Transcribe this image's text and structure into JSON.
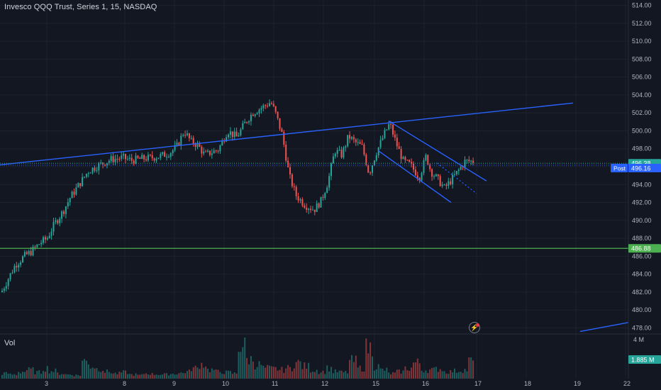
{
  "header": {
    "title": "Invesco QQQ Trust, Series 1, 15, NASDAQ"
  },
  "volume_pane": {
    "label": "Vol",
    "scale_label": "4 M",
    "current_value": "1.885 M"
  },
  "price_badges": {
    "last_price": "496.38",
    "post_label": "Post",
    "post_price": "496.16",
    "horizontal_level": "486.88"
  },
  "colors": {
    "background": "#131722",
    "up": "#26a69a",
    "down": "#ef5350",
    "trendline": "#2962ff",
    "level_line": "#4caf50",
    "grid": "#1e222d",
    "text": "#b2b5be"
  },
  "chart_data": {
    "type": "candlestick",
    "title": "Invesco QQQ Trust, Series 1, 15, NASDAQ",
    "y_axis": {
      "ticks": [
        "514.00",
        "512.00",
        "510.00",
        "508.00",
        "506.00",
        "504.00",
        "502.00",
        "500.00",
        "498.00",
        "496.00",
        "494.00",
        "492.00",
        "490.00",
        "488.00",
        "486.00",
        "484.00",
        "482.00",
        "480.00",
        "478.00"
      ],
      "ylim": [
        477.4,
        514.6
      ],
      "position": "right"
    },
    "x_axis": {
      "ticks": [
        "3",
        "8",
        "9",
        "10",
        "11",
        "12",
        "15",
        "16",
        "17",
        "18",
        "19",
        "22"
      ],
      "tick_days": [
        3,
        8,
        9,
        10,
        11,
        12,
        15,
        16,
        17,
        18,
        19,
        22
      ]
    },
    "grid": true,
    "price_path": [
      [
        1.0,
        482.0
      ],
      [
        1.3,
        483.5
      ],
      [
        1.6,
        485.0
      ],
      [
        2.0,
        486.0
      ],
      [
        2.3,
        486.5
      ],
      [
        2.7,
        487.5
      ],
      [
        3.0,
        488.0
      ],
      [
        3.3,
        489.5
      ],
      [
        3.7,
        491.0
      ],
      [
        4.0,
        492.5
      ],
      [
        4.4,
        494.0
      ],
      [
        4.8,
        495.5
      ],
      [
        5.3,
        496.2
      ],
      [
        5.8,
        496.8
      ],
      [
        6.3,
        497.0
      ],
      [
        6.7,
        496.7
      ],
      [
        7.2,
        496.9
      ],
      [
        7.6,
        497.0
      ],
      [
        8.0,
        497.2
      ],
      [
        8.4,
        497.6
      ],
      [
        8.7,
        498.3
      ],
      [
        9.0,
        500.0
      ],
      [
        9.3,
        498.8
      ],
      [
        9.6,
        498.4
      ],
      [
        9.9,
        497.3
      ],
      [
        10.2,
        497.6
      ],
      [
        10.5,
        497.9
      ],
      [
        10.9,
        500.0
      ],
      [
        11.3,
        499.3
      ],
      [
        11.7,
        501.0
      ],
      [
        12.0,
        502.0
      ],
      [
        12.4,
        502.6
      ],
      [
        12.8,
        503.2
      ],
      [
        13.0,
        502.0
      ],
      [
        13.3,
        499.5
      ],
      [
        13.6,
        495.0
      ],
      [
        13.9,
        492.8
      ],
      [
        14.3,
        491.7
      ],
      [
        14.7,
        491.2
      ],
      [
        15.0,
        492.2
      ],
      [
        15.3,
        494.3
      ],
      [
        15.6,
        497.8
      ],
      [
        15.9,
        497.3
      ],
      [
        16.2,
        499.4
      ],
      [
        16.5,
        498.7
      ],
      [
        16.8,
        498.2
      ],
      [
        17.1,
        495.2
      ],
      [
        17.4,
        497.5
      ],
      [
        17.8,
        499.8
      ],
      [
        18.0,
        500.8
      ],
      [
        18.3,
        498.5
      ],
      [
        18.6,
        496.6
      ],
      [
        18.9,
        496.2
      ],
      [
        19.3,
        494.8
      ],
      [
        19.6,
        497.2
      ],
      [
        19.8,
        495.5
      ],
      [
        20.1,
        494.6
      ],
      [
        20.4,
        493.6
      ],
      [
        20.7,
        494.5
      ],
      [
        21.0,
        495.5
      ],
      [
        21.3,
        496.6
      ]
    ],
    "volume_relative": [
      0.15,
      0.12,
      0.2,
      0.25,
      0.18,
      0.3,
      0.22,
      0.15,
      0.12,
      0.1,
      0.5,
      0.35,
      0.28,
      0.2,
      0.15,
      0.18,
      0.12,
      0.1,
      0.15,
      0.13,
      0.12,
      0.14,
      0.16,
      0.2,
      0.3,
      0.42,
      0.25,
      0.2,
      0.18,
      0.15,
      0.95,
      0.55,
      0.4,
      0.3,
      0.28,
      0.25,
      0.3,
      0.45,
      0.35,
      0.25,
      0.2,
      0.3,
      0.2,
      0.18,
      0.5,
      0.3,
      0.88,
      0.35,
      0.25,
      0.15,
      0.2,
      0.3,
      0.45,
      0.25,
      0.25,
      0.28,
      0.2,
      0.22,
      0.25,
      0.5
    ]
  }
}
